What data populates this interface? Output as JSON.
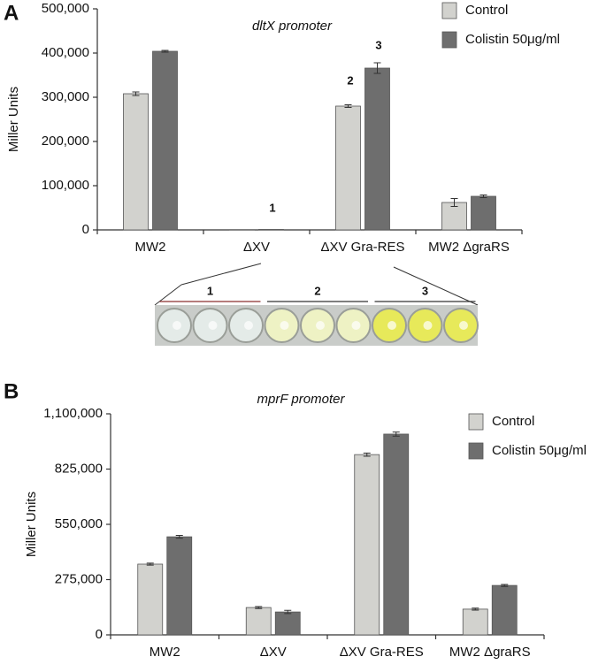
{
  "chart_data": [
    {
      "type": "bar",
      "panel": "A",
      "title": "dltX promoter",
      "y_label": "Miller Units",
      "categories": [
        "MW2",
        "ΔXV",
        "ΔXV Gra-RES",
        "MW2 ΔgraRS"
      ],
      "series": [
        {
          "name": "Control",
          "color": "#d2d2ce",
          "values": [
            308000,
            500,
            280000,
            62000
          ],
          "errors": [
            4000,
            0,
            3000,
            9000
          ]
        },
        {
          "name": "Colistin 50μg/ml",
          "color": "#6e6e6e",
          "values": [
            404000,
            1000,
            366000,
            76000
          ],
          "errors": [
            2000,
            0,
            12000,
            3000
          ]
        }
      ],
      "ylim": [
        0,
        500000
      ],
      "yticks": [
        {
          "value": 0,
          "label": "0"
        },
        {
          "value": 100000,
          "label": "100,000"
        },
        {
          "value": 200000,
          "label": "200,000"
        },
        {
          "value": 300000,
          "label": "300,000"
        },
        {
          "value": 400000,
          "label": "400,000"
        },
        {
          "value": 500000,
          "label": "500,000"
        }
      ],
      "bar_labels": [
        "1",
        "2",
        "3"
      ],
      "inset_labels": [
        "1",
        "2",
        "3"
      ],
      "legend": "upper right",
      "grid": false
    },
    {
      "type": "bar",
      "panel": "B",
      "title": "mprF promoter",
      "y_label": "Miller Units",
      "categories": [
        "MW2",
        "ΔXV",
        "ΔXV Gra-RES",
        "MW2 ΔgraRS"
      ],
      "series": [
        {
          "name": "Control",
          "color": "#d2d2ce",
          "values": [
            352000,
            136000,
            897000,
            128000
          ],
          "errors": [
            5000,
            5000,
            8000,
            5000
          ]
        },
        {
          "name": "Colistin 50μg/ml",
          "color": "#6e6e6e",
          "values": [
            488000,
            114000,
            999000,
            246000
          ],
          "errors": [
            7000,
            8000,
            10000,
            5000
          ]
        }
      ],
      "ylim": [
        0,
        1100000
      ],
      "yticks": [
        {
          "value": 0,
          "label": "0"
        },
        {
          "value": 275000,
          "label": "275,000"
        },
        {
          "value": 550000,
          "label": "550,000"
        },
        {
          "value": 825000,
          "label": "825,000"
        },
        {
          "value": 1100000,
          "label": "1,100,000"
        }
      ],
      "legend": "upper right",
      "grid": false
    }
  ]
}
